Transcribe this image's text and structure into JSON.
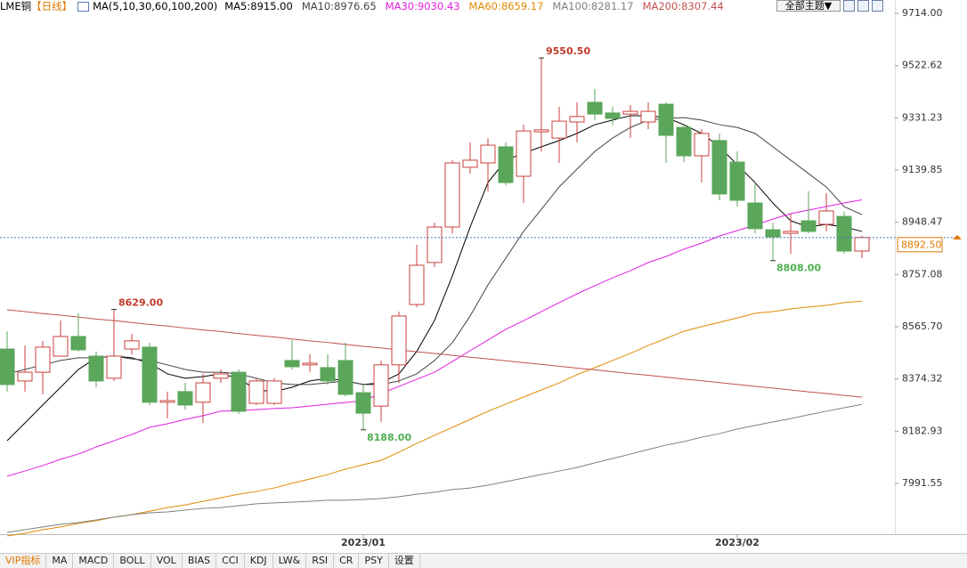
{
  "header": {
    "symbol": "LME铜",
    "period": "【日线】",
    "ma_title": "MA(5,10,30,60,100,200)",
    "theme_button": "全部主题▼"
  },
  "indicator_tabs": [
    "VIP指标",
    "MA",
    "MACD",
    "BOLL",
    "VOL",
    "BIAS",
    "CCI",
    "KDJ",
    "LW&",
    "RSI",
    "CR",
    "PSY",
    "设置"
  ],
  "chart_data": {
    "type": "candlestick",
    "categories": [
      null,
      null,
      null,
      null,
      null,
      null,
      null,
      null,
      null,
      null,
      null,
      null,
      null,
      null,
      null,
      null,
      null,
      null,
      null,
      null,
      "2023/01",
      null,
      null,
      null,
      null,
      null,
      null,
      null,
      null,
      null,
      null,
      null,
      null,
      null,
      null,
      null,
      null,
      null,
      null,
      null,
      null,
      "2023/02",
      null,
      null,
      null,
      null,
      null,
      null,
      null
    ],
    "ohlc": [
      [
        8484,
        8549,
        8328,
        8354
      ],
      [
        8367,
        8497,
        8328,
        8399
      ],
      [
        8399,
        8514,
        8318,
        8491
      ],
      [
        8458,
        8589,
        8458,
        8530
      ],
      [
        8530,
        8615,
        8475,
        8481
      ],
      [
        8458,
        8475,
        8344,
        8367
      ],
      [
        8377,
        8629,
        8367,
        8458
      ],
      [
        8484,
        8540,
        8465,
        8514
      ],
      [
        8491,
        8507,
        8279,
        8289
      ],
      [
        8289,
        8328,
        8230,
        8295
      ],
      [
        8328,
        8360,
        8262,
        8279
      ],
      [
        8289,
        8393,
        8213,
        8360
      ],
      [
        8377,
        8409,
        8360,
        8393
      ],
      [
        8399,
        8409,
        8246,
        8256
      ],
      [
        8285,
        8377,
        8279,
        8367
      ],
      [
        8285,
        8377,
        8279,
        8367
      ],
      [
        8442,
        8517,
        8409,
        8419
      ],
      [
        8426,
        8465,
        8399,
        8432
      ],
      [
        8416,
        8465,
        8354,
        8367
      ],
      [
        8442,
        8507,
        8311,
        8318
      ],
      [
        8324,
        8354,
        8188,
        8249
      ],
      [
        8275,
        8442,
        8217,
        8426
      ],
      [
        8426,
        8621,
        8360,
        8605
      ],
      [
        8647,
        8866,
        8638,
        8791
      ],
      [
        8801,
        8947,
        8784,
        8931
      ],
      [
        8931,
        9176,
        8908,
        9166
      ],
      [
        9150,
        9241,
        9127,
        9176
      ],
      [
        9166,
        9257,
        9062,
        9231
      ],
      [
        9225,
        9241,
        9084,
        9094
      ],
      [
        9117,
        9306,
        9019,
        9283
      ],
      [
        9280,
        9550.5,
        9208,
        9287
      ],
      [
        9257,
        9372,
        9166,
        9319
      ],
      [
        9316,
        9388,
        9241,
        9336
      ],
      [
        9388,
        9437,
        9323,
        9345
      ],
      [
        9349,
        9372,
        9306,
        9329
      ],
      [
        9345,
        9378,
        9257,
        9355
      ],
      [
        9316,
        9388,
        9290,
        9355
      ],
      [
        9381,
        9388,
        9166,
        9267
      ],
      [
        9296,
        9306,
        9169,
        9192
      ],
      [
        9192,
        9290,
        9094,
        9274
      ],
      [
        9248,
        9274,
        9029,
        9052
      ],
      [
        9169,
        9208,
        9006,
        9029
      ],
      [
        9019,
        9094,
        8908,
        8925
      ],
      [
        8921,
        8947,
        8808,
        8895
      ],
      [
        8908,
        8980,
        8833,
        8915
      ],
      [
        8954,
        9062,
        8908,
        8915
      ],
      [
        8941,
        9055,
        8915,
        8990
      ],
      [
        8970,
        8987,
        8833,
        8843
      ],
      [
        8843,
        8899,
        8817,
        8892.5
      ]
    ],
    "up_color": "#c8403c",
    "down_color": "#5aa65a",
    "series": [
      {
        "name": "MA5:8915.00",
        "color": "#000000",
        "values": [
          8148,
          8213,
          8279,
          8344,
          8409,
          8452,
          8458,
          8452,
          8432,
          8393,
          8377,
          8383,
          8393,
          8377,
          8334,
          8328,
          8344,
          8367,
          8377,
          8367,
          8354,
          8360,
          8393,
          8475,
          8589,
          8752,
          8931,
          9094,
          9176,
          9202,
          9225,
          9248,
          9274,
          9306,
          9323,
          9339,
          9339,
          9332,
          9306,
          9274,
          9225,
          9159,
          9094,
          9019,
          8954,
          8931,
          8941,
          8931,
          8915
        ]
      },
      {
        "name": "MA10:8976.65",
        "color": "#444444",
        "values": [
          8393,
          8409,
          8426,
          8442,
          8452,
          8452,
          8458,
          8448,
          8442,
          8426,
          8409,
          8399,
          8399,
          8393,
          8377,
          8360,
          8354,
          8354,
          8360,
          8367,
          8354,
          8354,
          8367,
          8393,
          8442,
          8507,
          8605,
          8719,
          8817,
          8915,
          8996,
          9078,
          9143,
          9208,
          9257,
          9296,
          9323,
          9329,
          9332,
          9323,
          9306,
          9296,
          9274,
          9225,
          9176,
          9127,
          9078,
          9006,
          8976.65
        ]
      },
      {
        "name": "MA30:9030.43",
        "color": "#e020e0",
        "values": [
          8018,
          8037,
          8057,
          8080,
          8099,
          8125,
          8148,
          8171,
          8197,
          8210,
          8226,
          8240,
          8256,
          8259,
          8262,
          8266,
          8269,
          8275,
          8282,
          8288,
          8295,
          8321,
          8347,
          8373,
          8399,
          8438,
          8478,
          8517,
          8556,
          8588,
          8621,
          8654,
          8686,
          8716,
          8745,
          8771,
          8801,
          8823,
          8850,
          8872,
          8898,
          8918,
          8938,
          8960,
          8980,
          8993,
          9006,
          9019,
          9030.43
        ]
      },
      {
        "name": "MA60:8659.17",
        "color": "#e08a00",
        "values": [
          7799,
          7809,
          7822,
          7832,
          7845,
          7855,
          7868,
          7877,
          7890,
          7903,
          7913,
          7926,
          7939,
          7952,
          7962,
          7975,
          7992,
          8008,
          8024,
          8044,
          8060,
          8076,
          8106,
          8138,
          8168,
          8197,
          8226,
          8256,
          8282,
          8308,
          8334,
          8360,
          8390,
          8416,
          8442,
          8468,
          8497,
          8523,
          8549,
          8566,
          8582,
          8598,
          8615,
          8621,
          8631,
          8638,
          8644,
          8654,
          8659.17
        ]
      },
      {
        "name": "MA100:8281.17",
        "color": "#808080",
        "values": [
          7812,
          7822,
          7832,
          7842,
          7848,
          7858,
          7868,
          7877,
          7884,
          7887,
          7894,
          7900,
          7903,
          7910,
          7917,
          7920,
          7923,
          7926,
          7930,
          7930,
          7933,
          7936,
          7943,
          7952,
          7959,
          7969,
          7975,
          7985,
          7998,
          8011,
          8024,
          8037,
          8050,
          8067,
          8083,
          8099,
          8116,
          8132,
          8145,
          8161,
          8174,
          8191,
          8204,
          8217,
          8229,
          8243,
          8256,
          8269,
          8281.17
        ]
      },
      {
        "name": "MA200:8307.44",
        "color": "#c05050",
        "values": [
          8628,
          8621,
          8614,
          8608,
          8601,
          8594,
          8588,
          8581,
          8574,
          8568,
          8561,
          8554,
          8548,
          8541,
          8534,
          8528,
          8521,
          8514,
          8508,
          8501,
          8494,
          8488,
          8481,
          8474,
          8468,
          8461,
          8454,
          8448,
          8441,
          8434,
          8428,
          8421,
          8414,
          8408,
          8401,
          8394,
          8388,
          8381,
          8374,
          8368,
          8361,
          8354,
          8347,
          8341,
          8334,
          8327,
          8321,
          8314,
          8307.44
        ]
      }
    ],
    "annotations": [
      {
        "value": 9550.5,
        "label": "9550.50"
      },
      {
        "value": 8629,
        "label": "8629.00"
      },
      {
        "value": 8188,
        "label": "8188.00"
      },
      {
        "value": 8808,
        "label": "8808.00"
      }
    ],
    "last_price": {
      "value": 8892.5,
      "label": "8892.50"
    },
    "last_price_color": "#e07800",
    "ylim": [
      7805.6,
      9762.93
    ],
    "yticks": [
      {
        "value": 9714,
        "label": "9714.00"
      },
      9522.62,
      9331.23,
      9139.85,
      8948.47,
      8757.08,
      {
        "value": 8565.7,
        "label": "8565.70"
      },
      8374.32,
      8182.93,
      7991.55
    ],
    "grid": false
  }
}
